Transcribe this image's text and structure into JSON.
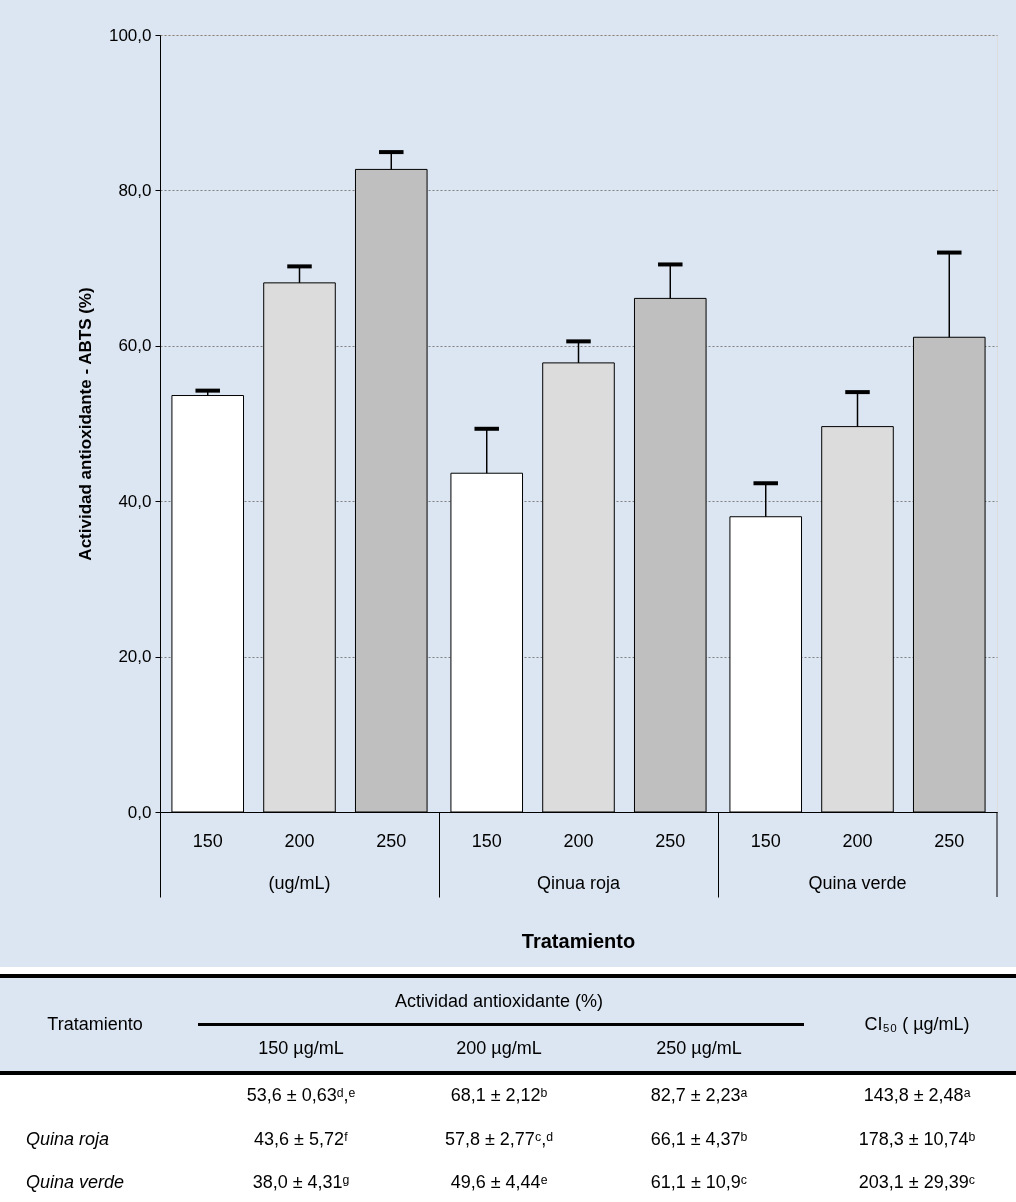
{
  "chart_data": {
    "type": "bar",
    "xlabel": "Tratamiento",
    "ylabel": "Actividad antioxidante - ABTS  (%)",
    "categories": [
      "(ug/mL)",
      "Qinua roja",
      "Quina verde"
    ],
    "ylim": [
      0,
      100
    ],
    "yticks": [
      {
        "value": 0,
        "label": "0,0"
      },
      {
        "value": 20,
        "label": "20,0"
      },
      {
        "value": 40,
        "label": "40,0"
      },
      {
        "value": 60,
        "label": "60,0"
      },
      {
        "value": 80,
        "label": "80,0"
      },
      {
        "value": 100,
        "label": "100,0"
      }
    ],
    "grid": "y",
    "series": [
      {
        "name": "150",
        "color": "#ffffff",
        "values": [
          53.6,
          43.6,
          38.0
        ],
        "errors": [
          [
            53.6,
            54.23
          ],
          [
            43.6,
            49.32
          ],
          [
            38.0,
            42.31
          ]
        ]
      },
      {
        "name": "200",
        "color": "#dcdcdc",
        "values": [
          68.1,
          57.8,
          49.6
        ],
        "errors": [
          [
            68.1,
            70.22
          ],
          [
            57.8,
            60.57
          ],
          [
            49.6,
            54.04
          ]
        ]
      },
      {
        "name": "250",
        "color": "#bfbfbf",
        "values": [
          82.7,
          66.1,
          61.1
        ],
        "errors": [
          [
            82.7,
            84.93
          ],
          [
            66.1,
            70.47
          ],
          [
            61.1,
            72.0
          ]
        ]
      }
    ],
    "annotations": [
      "Tratamiento",
      "Actividad antioxidante (%)",
      "CI₅₀ ( µg/mL)",
      "150 µg/mL",
      "200 µg/mL",
      "250 µg/mL",
      "Quina roja",
      "Quina verde",
      "53,6 ± 0,63ᵈ,ᵉ",
      "68,1 ± 2,12ᵇ",
      "82,7 ± 2,23ᵃ",
      "143,8 ± 2,48ᵃ",
      "43,6 ± 5,72ᶠ",
      "57,8 ± 2,77ᶜ,ᵈ",
      "66,1 ± 4,37ᵇ",
      "178,3 ± 10,74ᵇ",
      "38,0 ± 4,31ᵍ",
      "49,6 ± 4,44ᵉ",
      "61,1 ± 10,9ᶜ",
      "203,1 ± 29,39ᶜ"
    ]
  }
}
